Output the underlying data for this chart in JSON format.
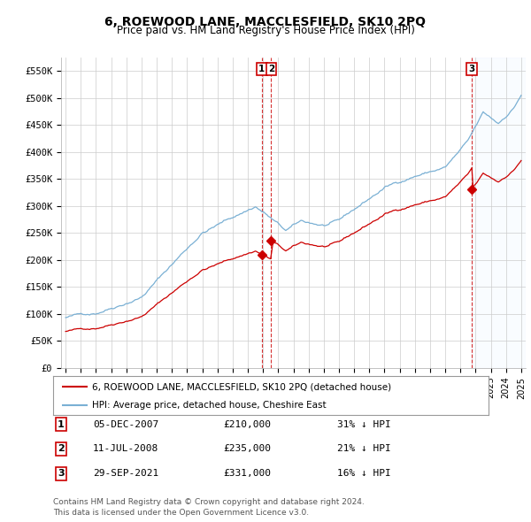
{
  "title": "6, ROEWOOD LANE, MACCLESFIELD, SK10 2PQ",
  "subtitle": "Price paid vs. HM Land Registry's House Price Index (HPI)",
  "title_fontsize": 10,
  "subtitle_fontsize": 8.5,
  "ylabel_ticks": [
    "£0",
    "£50K",
    "£100K",
    "£150K",
    "£200K",
    "£250K",
    "£300K",
    "£350K",
    "£400K",
    "£450K",
    "£500K",
    "£550K"
  ],
  "ytick_values": [
    0,
    50000,
    100000,
    150000,
    200000,
    250000,
    300000,
    350000,
    400000,
    450000,
    500000,
    550000
  ],
  "ylim": [
    0,
    575000
  ],
  "xlim_start": 1994.7,
  "xlim_end": 2025.3,
  "sale_color": "#cc0000",
  "hpi_color": "#7ab0d4",
  "shade_color": "#ddeeff",
  "legend_sale_label": "6, ROEWOOD LANE, MACCLESFIELD, SK10 2PQ (detached house)",
  "legend_hpi_label": "HPI: Average price, detached house, Cheshire East",
  "transactions": [
    {
      "num": 1,
      "date": "05-DEC-2007",
      "price": 210000,
      "pct": "31%",
      "dir": "↓",
      "year": 2007.92
    },
    {
      "num": 2,
      "date": "11-JUL-2008",
      "price": 235000,
      "pct": "21%",
      "dir": "↓",
      "year": 2008.53
    },
    {
      "num": 3,
      "date": "29-SEP-2021",
      "price": 331000,
      "pct": "16%",
      "dir": "↓",
      "year": 2021.75
    }
  ],
  "footer_line1": "Contains HM Land Registry data © Crown copyright and database right 2024.",
  "footer_line2": "This data is licensed under the Open Government Licence v3.0.",
  "background_color": "#ffffff",
  "plot_bg_color": "#ffffff",
  "grid_color": "#cccccc"
}
